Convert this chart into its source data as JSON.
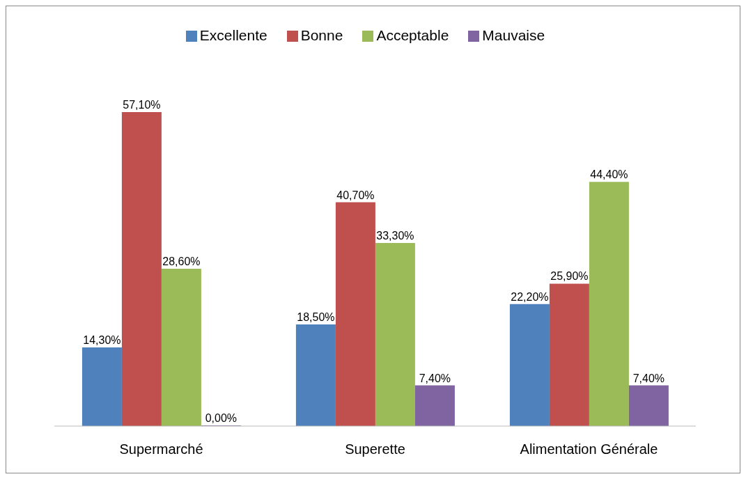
{
  "chart_data": {
    "type": "bar",
    "categories": [
      "Supermarché",
      "Superette",
      "Alimentation Générale"
    ],
    "series": [
      {
        "name": "Excellente",
        "color": "#4f81bd",
        "values": [
          14.3,
          18.5,
          22.2
        ],
        "value_labels": [
          "14,30%",
          "18,50%",
          "22,20%"
        ]
      },
      {
        "name": "Bonne",
        "color": "#c0504d",
        "values": [
          57.1,
          40.7,
          25.9
        ],
        "value_labels": [
          "57,10%",
          "40,70%",
          "25,90%"
        ]
      },
      {
        "name": "Acceptable",
        "color": "#9bbb59",
        "values": [
          28.6,
          33.3,
          44.4
        ],
        "value_labels": [
          "28,60%",
          "33,30%",
          "44,40%"
        ]
      },
      {
        "name": "Mauvaise",
        "color": "#8064a2",
        "values": [
          0.0,
          7.4,
          7.4
        ],
        "value_labels": [
          "0,00%",
          "7,40%",
          "7,40%"
        ]
      }
    ],
    "legend": "top"
  }
}
